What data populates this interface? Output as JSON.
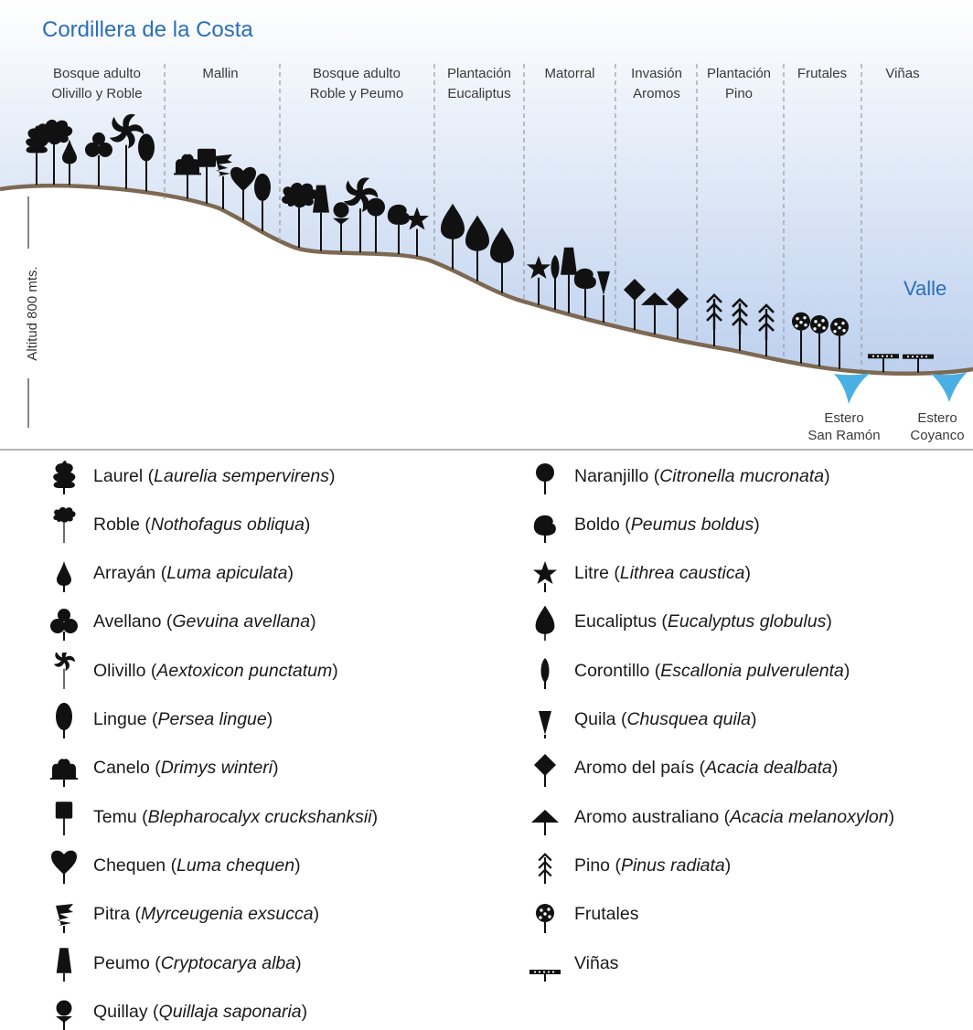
{
  "title": "Cordillera de la Costa",
  "valley_label": "Valle",
  "altitude_label": "Altitud 800 mts.",
  "zones": [
    {
      "id": "bosque-olivillo",
      "lines": [
        "Bosque adulto",
        "Olivillo y Roble"
      ],
      "icons": [
        "laurel",
        "roble",
        "arrayan",
        "avellano",
        "olivillo",
        "lingue"
      ]
    },
    {
      "id": "mallin",
      "lines": [
        "Mallin"
      ],
      "icons": [
        "canelo",
        "temu",
        "pitra",
        "chequen",
        "lingue"
      ]
    },
    {
      "id": "bosque-peumo",
      "lines": [
        "Bosque adulto",
        "Roble y Peumo"
      ],
      "icons": [
        "roble",
        "peumo",
        "quillay",
        "olivillo",
        "naranjillo",
        "boldo",
        "litre"
      ]
    },
    {
      "id": "plantacion-eucaliptus",
      "lines": [
        "Plantación",
        "Eucaliptus"
      ],
      "icons": [
        "eucaliptus",
        "eucaliptus",
        "eucaliptus"
      ]
    },
    {
      "id": "matorral",
      "lines": [
        "Matorral"
      ],
      "icons": [
        "litre",
        "corontillo",
        "peumo",
        "boldo",
        "quila"
      ]
    },
    {
      "id": "invasion-aromos",
      "lines": [
        "Invasión",
        "Aromos"
      ],
      "icons": [
        "aromo-pais",
        "aromo-australiano",
        "aromo-pais"
      ]
    },
    {
      "id": "plantacion-pino",
      "lines": [
        "Plantación",
        "Pino"
      ],
      "icons": [
        "pino",
        "pino",
        "pino"
      ]
    },
    {
      "id": "frutales",
      "lines": [
        "Frutales"
      ],
      "icons": [
        "frutales",
        "frutales",
        "frutales"
      ]
    },
    {
      "id": "vinas",
      "lines": [
        "Viñas"
      ],
      "icons": [
        "vinas",
        "vinas"
      ]
    }
  ],
  "streams": [
    {
      "lines": [
        "Estero",
        "San Ramón"
      ]
    },
    {
      "lines": [
        "Estero",
        "Coyanco"
      ]
    }
  ],
  "legend": [
    {
      "icon": "laurel",
      "name": "Laurel",
      "sci": "Laurelia sempervirens"
    },
    {
      "icon": "roble",
      "name": "Roble",
      "sci": "Nothofagus obliqua"
    },
    {
      "icon": "arrayan",
      "name": "Arrayán",
      "sci": "Luma apiculata"
    },
    {
      "icon": "avellano",
      "name": "Avellano",
      "sci": "Gevuina avellana"
    },
    {
      "icon": "olivillo",
      "name": "Olivillo",
      "sci": "Aextoxicon punctatum"
    },
    {
      "icon": "lingue",
      "name": "Lingue",
      "sci": "Persea lingue"
    },
    {
      "icon": "canelo",
      "name": "Canelo",
      "sci": "Drimys winteri"
    },
    {
      "icon": "temu",
      "name": "Temu",
      "sci": "Blepharocalyx cruckshanksii"
    },
    {
      "icon": "chequen",
      "name": "Chequen",
      "sci": "Luma chequen"
    },
    {
      "icon": "pitra",
      "name": "Pitra",
      "sci": "Myrceugenia exsucca"
    },
    {
      "icon": "peumo",
      "name": "Peumo",
      "sci": "Cryptocarya alba"
    },
    {
      "icon": "quillay",
      "name": "Quillay",
      "sci": "Quillaja saponaria"
    },
    {
      "icon": "naranjillo",
      "name": "Naranjillo",
      "sci": "Citronella mucronata"
    },
    {
      "icon": "boldo",
      "name": "Boldo",
      "sci": "Peumus boldus"
    },
    {
      "icon": "litre",
      "name": "Litre",
      "sci": "Lithrea caustica"
    },
    {
      "icon": "eucaliptus",
      "name": "Eucaliptus",
      "sci": "Eucalyptus globulus"
    },
    {
      "icon": "corontillo",
      "name": "Corontillo",
      "sci": "Escallonia pulverulenta"
    },
    {
      "icon": "quila",
      "name": "Quila",
      "sci": "Chusquea quila"
    },
    {
      "icon": "aromo-pais",
      "name": "Aromo del país",
      "sci": "Acacia dealbata"
    },
    {
      "icon": "aromo-australiano",
      "name": "Aromo australiano",
      "sci": "Acacia melanoxylon"
    },
    {
      "icon": "pino",
      "name": "Pino",
      "sci": "Pinus radiata"
    },
    {
      "icon": "frutales",
      "name": "Frutales",
      "sci": ""
    },
    {
      "icon": "vinas",
      "name": "Viñas",
      "sci": ""
    }
  ],
  "colors": {
    "title_blue": "#2a6fba",
    "sky_top": "#ffffff",
    "sky_bottom": "#bcd0ee",
    "ground": "#7d6852",
    "water": "#4ab0e4",
    "divider": "#9a9a9a",
    "icon": "#111111",
    "label": "#3a3a3a"
  }
}
